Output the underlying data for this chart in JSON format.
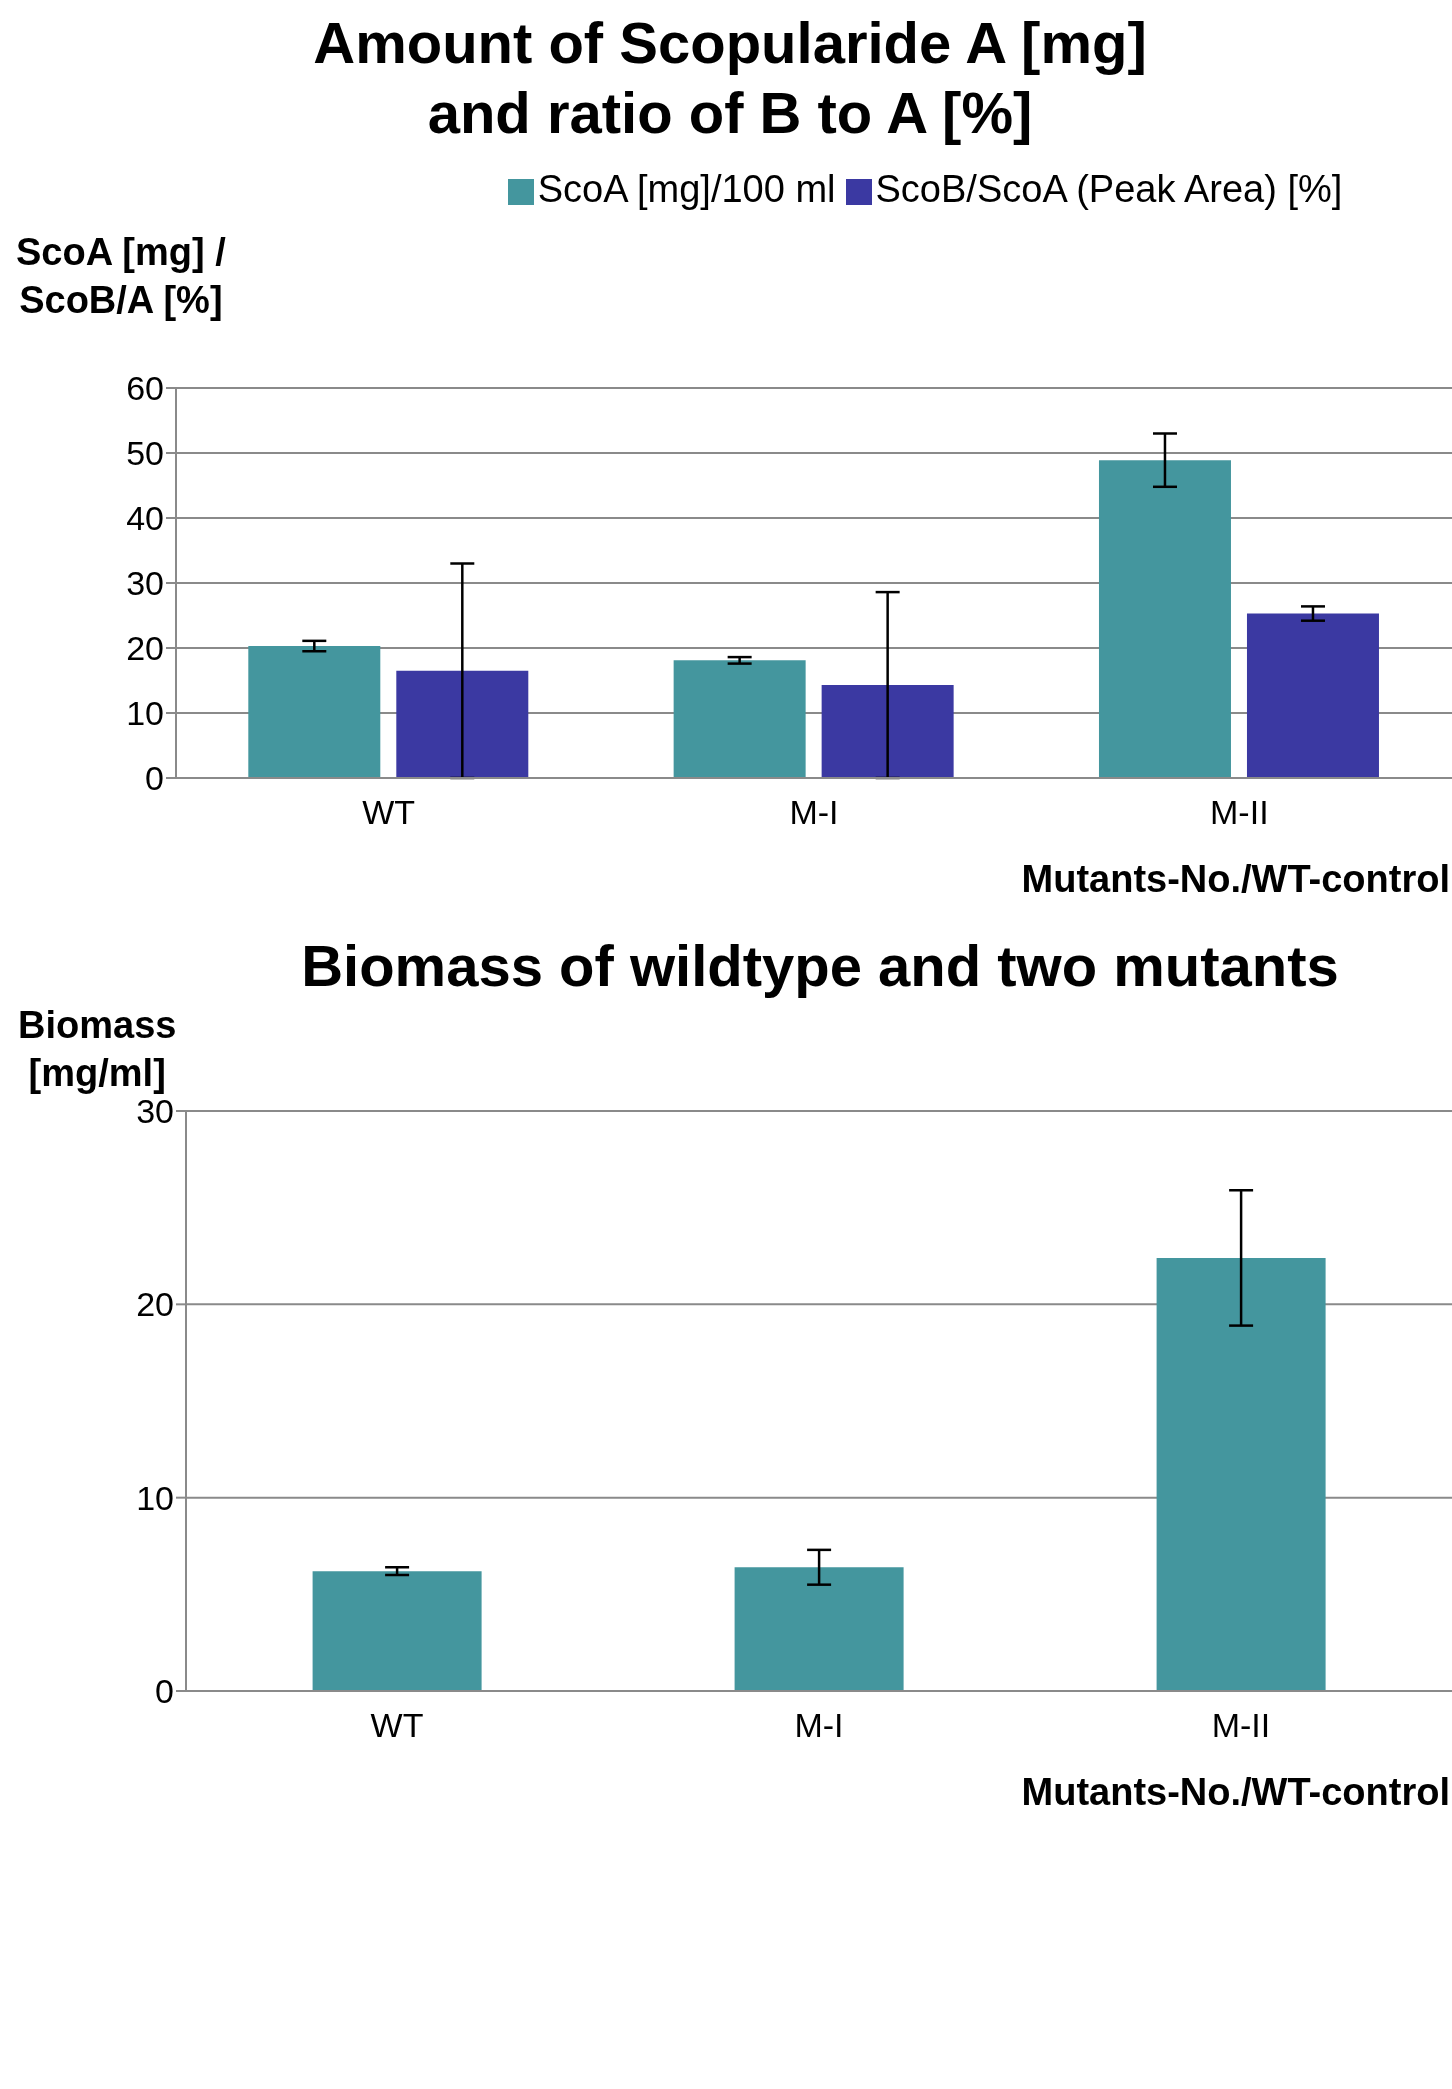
{
  "chart_data": [
    {
      "type": "bar",
      "title": "Amount of Scopularide A [mg]\nand ratio of B to A [%]",
      "ylabel": "ScoA [mg] /\nScoB/A [%]",
      "xlabel": "Mutants-No./WT-control",
      "categories": [
        "WT",
        "M-I",
        "M-II"
      ],
      "series": [
        {
          "name": "ScoA [mg]/100 ml",
          "color": "#44969e",
          "values": [
            20.3,
            18.1,
            48.9
          ],
          "errors": [
            0.8,
            0.5,
            4.1
          ]
        },
        {
          "name": "ScoB/ScoA (Peak Area) [%]",
          "color": "#3b39a2",
          "values": [
            16.5,
            14.3,
            25.3
          ],
          "errors": [
            16.5,
            14.3,
            1.1
          ]
        }
      ],
      "ylim": [
        0,
        60
      ],
      "yticks": [
        0,
        10,
        20,
        30,
        40,
        50,
        60
      ],
      "grid": "y",
      "legend": "top"
    },
    {
      "type": "bar",
      "title": "Biomass of  wildtype and two mutants",
      "ylabel": "Biomass\n[mg/ml]",
      "xlabel": "Mutants-No./WT-control",
      "categories": [
        "WT",
        "M-I",
        "M-II"
      ],
      "values": [
        6.2,
        6.4,
        22.4
      ],
      "errors": [
        0.2,
        0.9,
        3.5
      ],
      "color": "#44969e",
      "ylim": [
        0,
        30
      ],
      "yticks": [
        0,
        10,
        20,
        30
      ],
      "grid": "y"
    }
  ]
}
